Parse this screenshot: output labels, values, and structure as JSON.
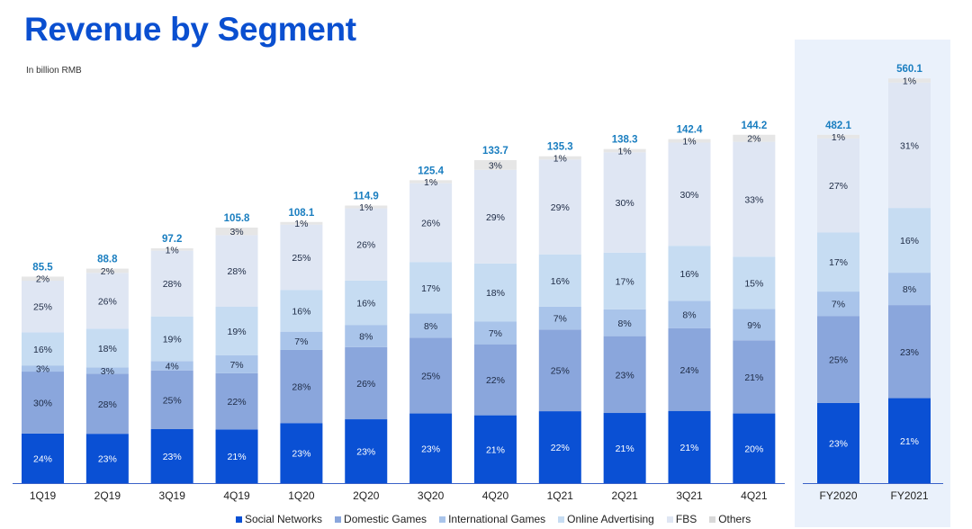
{
  "title": "Revenue by Segment",
  "subtitle": "In billion RMB",
  "chart_data": {
    "type": "bar",
    "stacked": true,
    "title": "Revenue by Segment",
    "unit": "In billion RMB",
    "xlabel": "",
    "ylabel": "",
    "categories": [
      "1Q19",
      "2Q19",
      "3Q19",
      "4Q19",
      "1Q20",
      "2Q20",
      "3Q20",
      "4Q20",
      "1Q21",
      "2Q21",
      "3Q21",
      "4Q21"
    ],
    "totals": [
      85.5,
      88.8,
      97.2,
      105.8,
      108.1,
      114.9,
      125.4,
      133.7,
      135.3,
      138.3,
      142.4,
      144.2
    ],
    "series": [
      {
        "name": "Social Networks",
        "color": "#0a50d4",
        "label_color": "#ffffff",
        "values": [
          24,
          23,
          23,
          21,
          23,
          23,
          23,
          21,
          22,
          21,
          21,
          20
        ]
      },
      {
        "name": "Domestic Games",
        "color": "#8aa6dc",
        "label_color": "#1d2a44",
        "values": [
          30,
          28,
          25,
          22,
          28,
          26,
          25,
          22,
          25,
          23,
          24,
          21
        ]
      },
      {
        "name": "International Games",
        "color": "#a9c4ea",
        "label_color": "#1d2a44",
        "values": [
          3,
          3,
          4,
          7,
          7,
          8,
          8,
          7,
          7,
          8,
          8,
          9
        ]
      },
      {
        "name": "Online Advertising",
        "color": "#c6dcf2",
        "label_color": "#1d2a44",
        "values": [
          16,
          18,
          19,
          19,
          16,
          16,
          17,
          18,
          16,
          17,
          16,
          15
        ]
      },
      {
        "name": "FBS",
        "color": "#dfe6f3",
        "label_color": "#1d2a44",
        "values": [
          25,
          26,
          28,
          28,
          25,
          26,
          26,
          29,
          29,
          30,
          30,
          33
        ]
      },
      {
        "name": "Others",
        "color": "#e6e6e6",
        "label_color": "#1d2a44",
        "values": [
          2,
          2,
          1,
          3,
          1,
          1,
          1,
          3,
          1,
          1,
          1,
          2
        ]
      }
    ],
    "annual": {
      "categories": [
        "FY2020",
        "FY2021"
      ],
      "totals": [
        482.1,
        560.1
      ],
      "series_values": [
        [
          23,
          21
        ],
        [
          25,
          23
        ],
        [
          7,
          8
        ],
        [
          17,
          16
        ],
        [
          27,
          31
        ],
        [
          1,
          1
        ]
      ]
    },
    "value_suffix": "%",
    "total_label_color": "#1a7ec0",
    "legend_position": "bottom",
    "grid": false
  }
}
